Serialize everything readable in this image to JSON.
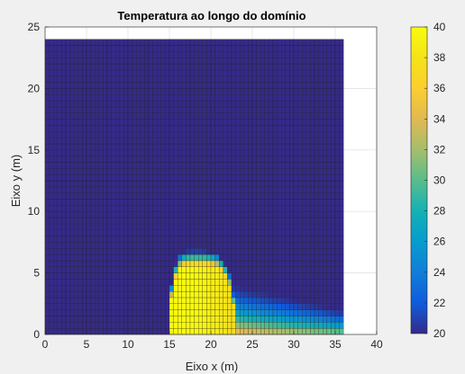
{
  "chart_data": {
    "type": "heatmap",
    "title": "Temperatura ao longo do domínio",
    "xlabel": "Eixo x (m)",
    "ylabel": "Eixo y (m)",
    "xlim": [
      0,
      40
    ],
    "ylim": [
      0,
      25
    ],
    "xticks": [
      "0",
      "5",
      "10",
      "15",
      "20",
      "25",
      "30",
      "35",
      "40"
    ],
    "yticks": [
      "0",
      "5",
      "10",
      "15",
      "20",
      "25"
    ],
    "grid": true,
    "domain": {
      "x": [
        0,
        36
      ],
      "y": [
        0,
        24
      ]
    },
    "cell_size": 0.5,
    "colormap": "parula",
    "clim": [
      20,
      40
    ],
    "colorbar": {
      "position": "right",
      "ticks": [
        "20",
        "22",
        "24",
        "26",
        "28",
        "30",
        "32",
        "34",
        "36",
        "38",
        "40"
      ]
    },
    "field": {
      "background_temperature": 20,
      "hot_region": {
        "x_min": 15,
        "x_max": 21,
        "y_max": 6,
        "peak_x": 18,
        "temperature": 40
      },
      "plume": {
        "x_start": 21,
        "x_end": 36,
        "temperature_near_bottom": 36
      }
    }
  }
}
